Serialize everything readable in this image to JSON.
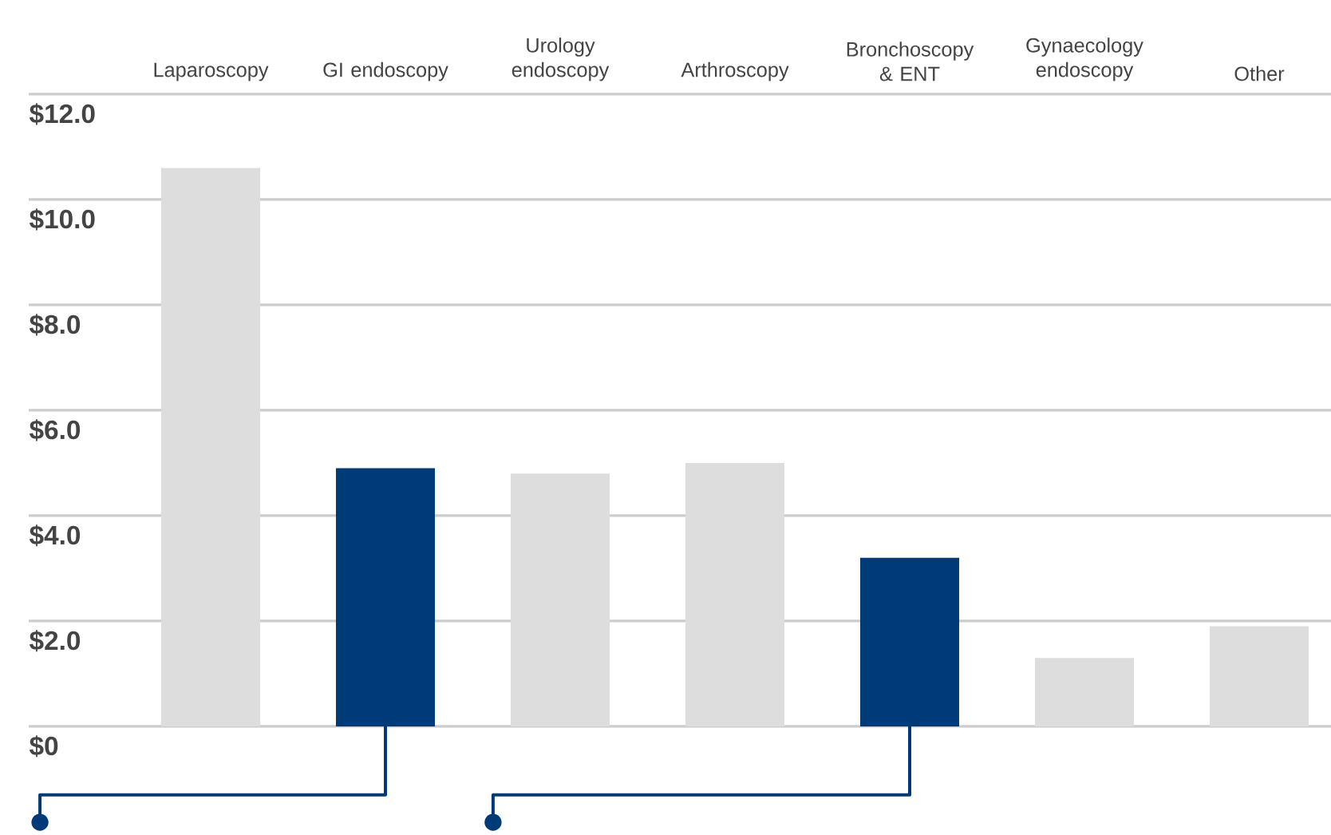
{
  "chart_data": {
    "type": "bar",
    "categories": [
      "Laparoscopy",
      "GI endoscopy",
      "Urology endoscopy",
      "Arthroscopy",
      "Bronchoscopy & ENT",
      "Gynaecology endoscopy",
      "Other"
    ],
    "values": [
      10.6,
      4.9,
      4.8,
      5.0,
      3.2,
      1.3,
      1.9
    ],
    "colors": [
      "#dddddd",
      "#003b77",
      "#dddddd",
      "#dddddd",
      "#003b77",
      "#dddddd",
      "#dddddd"
    ],
    "ylim": [
      0,
      12
    ],
    "yticks": [
      {
        "value": 0,
        "label": "$0"
      },
      {
        "value": 2,
        "label": "$2.0"
      },
      {
        "value": 4,
        "label": "$4.0"
      },
      {
        "value": 6,
        "label": "$6.0"
      },
      {
        "value": 8,
        "label": "$8.0"
      },
      {
        "value": 10,
        "label": "$10.0"
      },
      {
        "value": 12,
        "label": "$12.0"
      }
    ],
    "grid": "y"
  }
}
